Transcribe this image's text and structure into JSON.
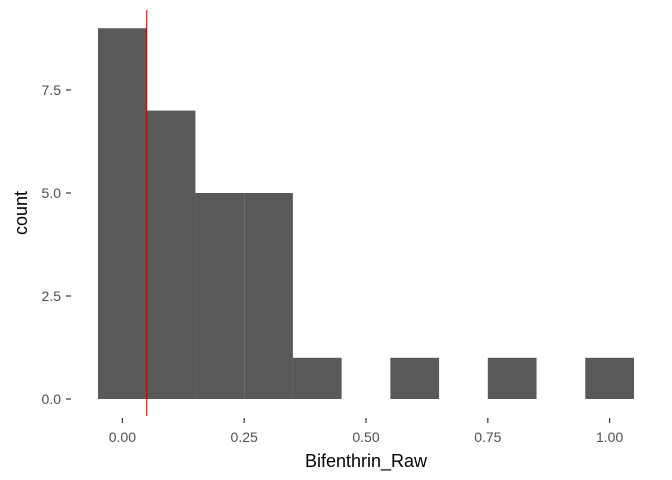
{
  "chart_data": {
    "type": "bar",
    "title": "",
    "xlabel": "Bifenthrin_Raw",
    "ylabel": "count",
    "xlim": [
      -0.05,
      1.05
    ],
    "ylim": [
      0,
      9
    ],
    "grid": false,
    "bar_color": "#595959",
    "bins": [
      {
        "x0": -0.05,
        "x1": 0.05,
        "count": 9
      },
      {
        "x0": 0.05,
        "x1": 0.15,
        "count": 7
      },
      {
        "x0": 0.15,
        "x1": 0.25,
        "count": 5
      },
      {
        "x0": 0.25,
        "x1": 0.35,
        "count": 5
      },
      {
        "x0": 0.35,
        "x1": 0.45,
        "count": 1
      },
      {
        "x0": 0.45,
        "x1": 0.55,
        "count": 0
      },
      {
        "x0": 0.55,
        "x1": 0.65,
        "count": 1
      },
      {
        "x0": 0.65,
        "x1": 0.75,
        "count": 0
      },
      {
        "x0": 0.75,
        "x1": 0.85,
        "count": 1
      },
      {
        "x0": 0.85,
        "x1": 0.95,
        "count": 0
      },
      {
        "x0": 0.95,
        "x1": 1.05,
        "count": 1
      }
    ],
    "x_ticks": [
      {
        "value": 0.0,
        "label": "0.00"
      },
      {
        "value": 0.25,
        "label": "0.25"
      },
      {
        "value": 0.5,
        "label": "0.50"
      },
      {
        "value": 0.75,
        "label": "0.75"
      },
      {
        "value": 1.0,
        "label": "1.00"
      }
    ],
    "y_ticks": [
      {
        "value": 0.0,
        "label": "0.0"
      },
      {
        "value": 2.5,
        "label": "2.5"
      },
      {
        "value": 5.0,
        "label": "5.0"
      },
      {
        "value": 7.5,
        "label": "7.5"
      }
    ],
    "reference_line": {
      "orientation": "vertical",
      "value": 0.05,
      "color": "#cc0000"
    }
  }
}
